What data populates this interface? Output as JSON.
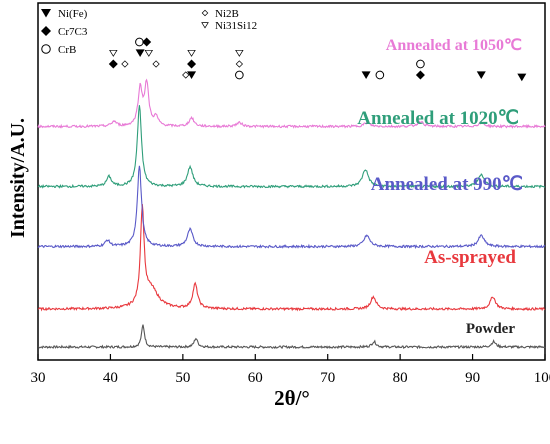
{
  "chart_data": {
    "type": "line",
    "xlabel": "2θ/°",
    "ylabel": "Intensity/A.U.",
    "xlim": [
      30,
      100
    ],
    "x_ticks": [
      30,
      40,
      50,
      60,
      70,
      80,
      90,
      100
    ],
    "grid": false,
    "legend": {
      "placement": "top-left",
      "items": [
        {
          "symbol": "filled-triangle-down",
          "label": "Ni(Fe)"
        },
        {
          "symbol": "filled-diamond",
          "label": "Cr7C3"
        },
        {
          "symbol": "open-circle",
          "label": "CrB"
        },
        {
          "symbol": "open-diamond",
          "label": "Ni2B"
        },
        {
          "symbol": "open-triangle-down",
          "label": "Ni31Si12"
        }
      ]
    },
    "series": [
      {
        "name": "Powder",
        "color": "#555555",
        "baseline": 0.0,
        "peaks": [
          {
            "x": 44.5,
            "h": 0.9,
            "w": 0.25
          },
          {
            "x": 51.8,
            "h": 0.35,
            "w": 0.3
          },
          {
            "x": 76.4,
            "h": 0.22,
            "w": 0.35
          },
          {
            "x": 92.9,
            "h": 0.22,
            "w": 0.35
          }
        ]
      },
      {
        "name": "As-sprayed",
        "color": "#e8383d",
        "baseline": 1.55,
        "peaks": [
          {
            "x": 44.4,
            "h": 3.9,
            "w": 0.3
          },
          {
            "x": 45.6,
            "h": 0.8,
            "w": 1.2
          },
          {
            "x": 51.7,
            "h": 1.0,
            "w": 0.4
          },
          {
            "x": 76.3,
            "h": 0.5,
            "w": 0.45
          },
          {
            "x": 92.8,
            "h": 0.5,
            "w": 0.45
          }
        ]
      },
      {
        "name": "Annealed at 990℃",
        "color": "#5a5ac8",
        "baseline": 4.1,
        "peaks": [
          {
            "x": 39.6,
            "h": 0.25,
            "w": 0.4
          },
          {
            "x": 44.0,
            "h": 3.3,
            "w": 0.35
          },
          {
            "x": 51.0,
            "h": 0.7,
            "w": 0.45
          },
          {
            "x": 75.4,
            "h": 0.45,
            "w": 0.5
          },
          {
            "x": 91.2,
            "h": 0.45,
            "w": 0.5
          }
        ]
      },
      {
        "name": "Annealed at 1020℃",
        "color": "#2f9e7a",
        "baseline": 6.55,
        "peaks": [
          {
            "x": 39.8,
            "h": 0.4,
            "w": 0.4
          },
          {
            "x": 44.0,
            "h": 3.3,
            "w": 0.35
          },
          {
            "x": 51.0,
            "h": 0.8,
            "w": 0.45
          },
          {
            "x": 75.2,
            "h": 0.7,
            "w": 0.5
          },
          {
            "x": 91.2,
            "h": 0.5,
            "w": 0.5
          }
        ]
      },
      {
        "name": "Annealed at 1050℃",
        "color": "#e87ad6",
        "baseline": 9.0,
        "peaks": [
          {
            "x": 40.5,
            "h": 0.2,
            "w": 0.4
          },
          {
            "x": 44.1,
            "h": 1.5,
            "w": 0.35
          },
          {
            "x": 45.0,
            "h": 1.7,
            "w": 0.35
          },
          {
            "x": 46.3,
            "h": 0.35,
            "w": 0.35
          },
          {
            "x": 51.2,
            "h": 0.35,
            "w": 0.4
          },
          {
            "x": 57.8,
            "h": 0.15,
            "w": 0.5
          },
          {
            "x": 75.4,
            "h": 0.15,
            "w": 0.5
          },
          {
            "x": 82.8,
            "h": 0.2,
            "w": 0.5
          },
          {
            "x": 91.2,
            "h": 0.15,
            "w": 0.5
          }
        ]
      }
    ],
    "phase_markers": [
      {
        "x": 40.4,
        "symbol": "filled-diamond",
        "level": 1
      },
      {
        "x": 40.4,
        "symbol": "open-triangle-down",
        "level": 2
      },
      {
        "x": 42.0,
        "symbol": "open-diamond",
        "level": 1
      },
      {
        "x": 44.1,
        "symbol": "filled-triangle-down",
        "level": 2
      },
      {
        "x": 44.0,
        "symbol": "open-circle",
        "level": 3
      },
      {
        "x": 45.0,
        "symbol": "filled-diamond",
        "level": 3
      },
      {
        "x": 45.3,
        "symbol": "open-triangle-down",
        "level": 2
      },
      {
        "x": 46.3,
        "symbol": "open-diamond",
        "level": 1
      },
      {
        "x": 50.4,
        "symbol": "open-diamond",
        "level": 0
      },
      {
        "x": 51.2,
        "symbol": "filled-triangle-down",
        "level": 0
      },
      {
        "x": 51.2,
        "symbol": "filled-diamond",
        "level": 1
      },
      {
        "x": 51.2,
        "symbol": "open-triangle-down",
        "level": 2
      },
      {
        "x": 57.8,
        "symbol": "open-triangle-down",
        "level": 2
      },
      {
        "x": 57.8,
        "symbol": "open-diamond",
        "level": 1
      },
      {
        "x": 57.8,
        "symbol": "open-circle",
        "level": 0
      },
      {
        "x": 75.3,
        "symbol": "filled-triangle-down",
        "level": 0
      },
      {
        "x": 77.2,
        "symbol": "open-circle",
        "level": 0
      },
      {
        "x": 82.8,
        "symbol": "filled-diamond",
        "level": 0
      },
      {
        "x": 82.8,
        "symbol": "open-circle",
        "level": 1
      },
      {
        "x": 91.2,
        "symbol": "filled-triangle-down",
        "level": 0
      },
      {
        "x": 96.8,
        "symbol": "filled-triangle-down",
        "level": -0.2
      }
    ]
  }
}
